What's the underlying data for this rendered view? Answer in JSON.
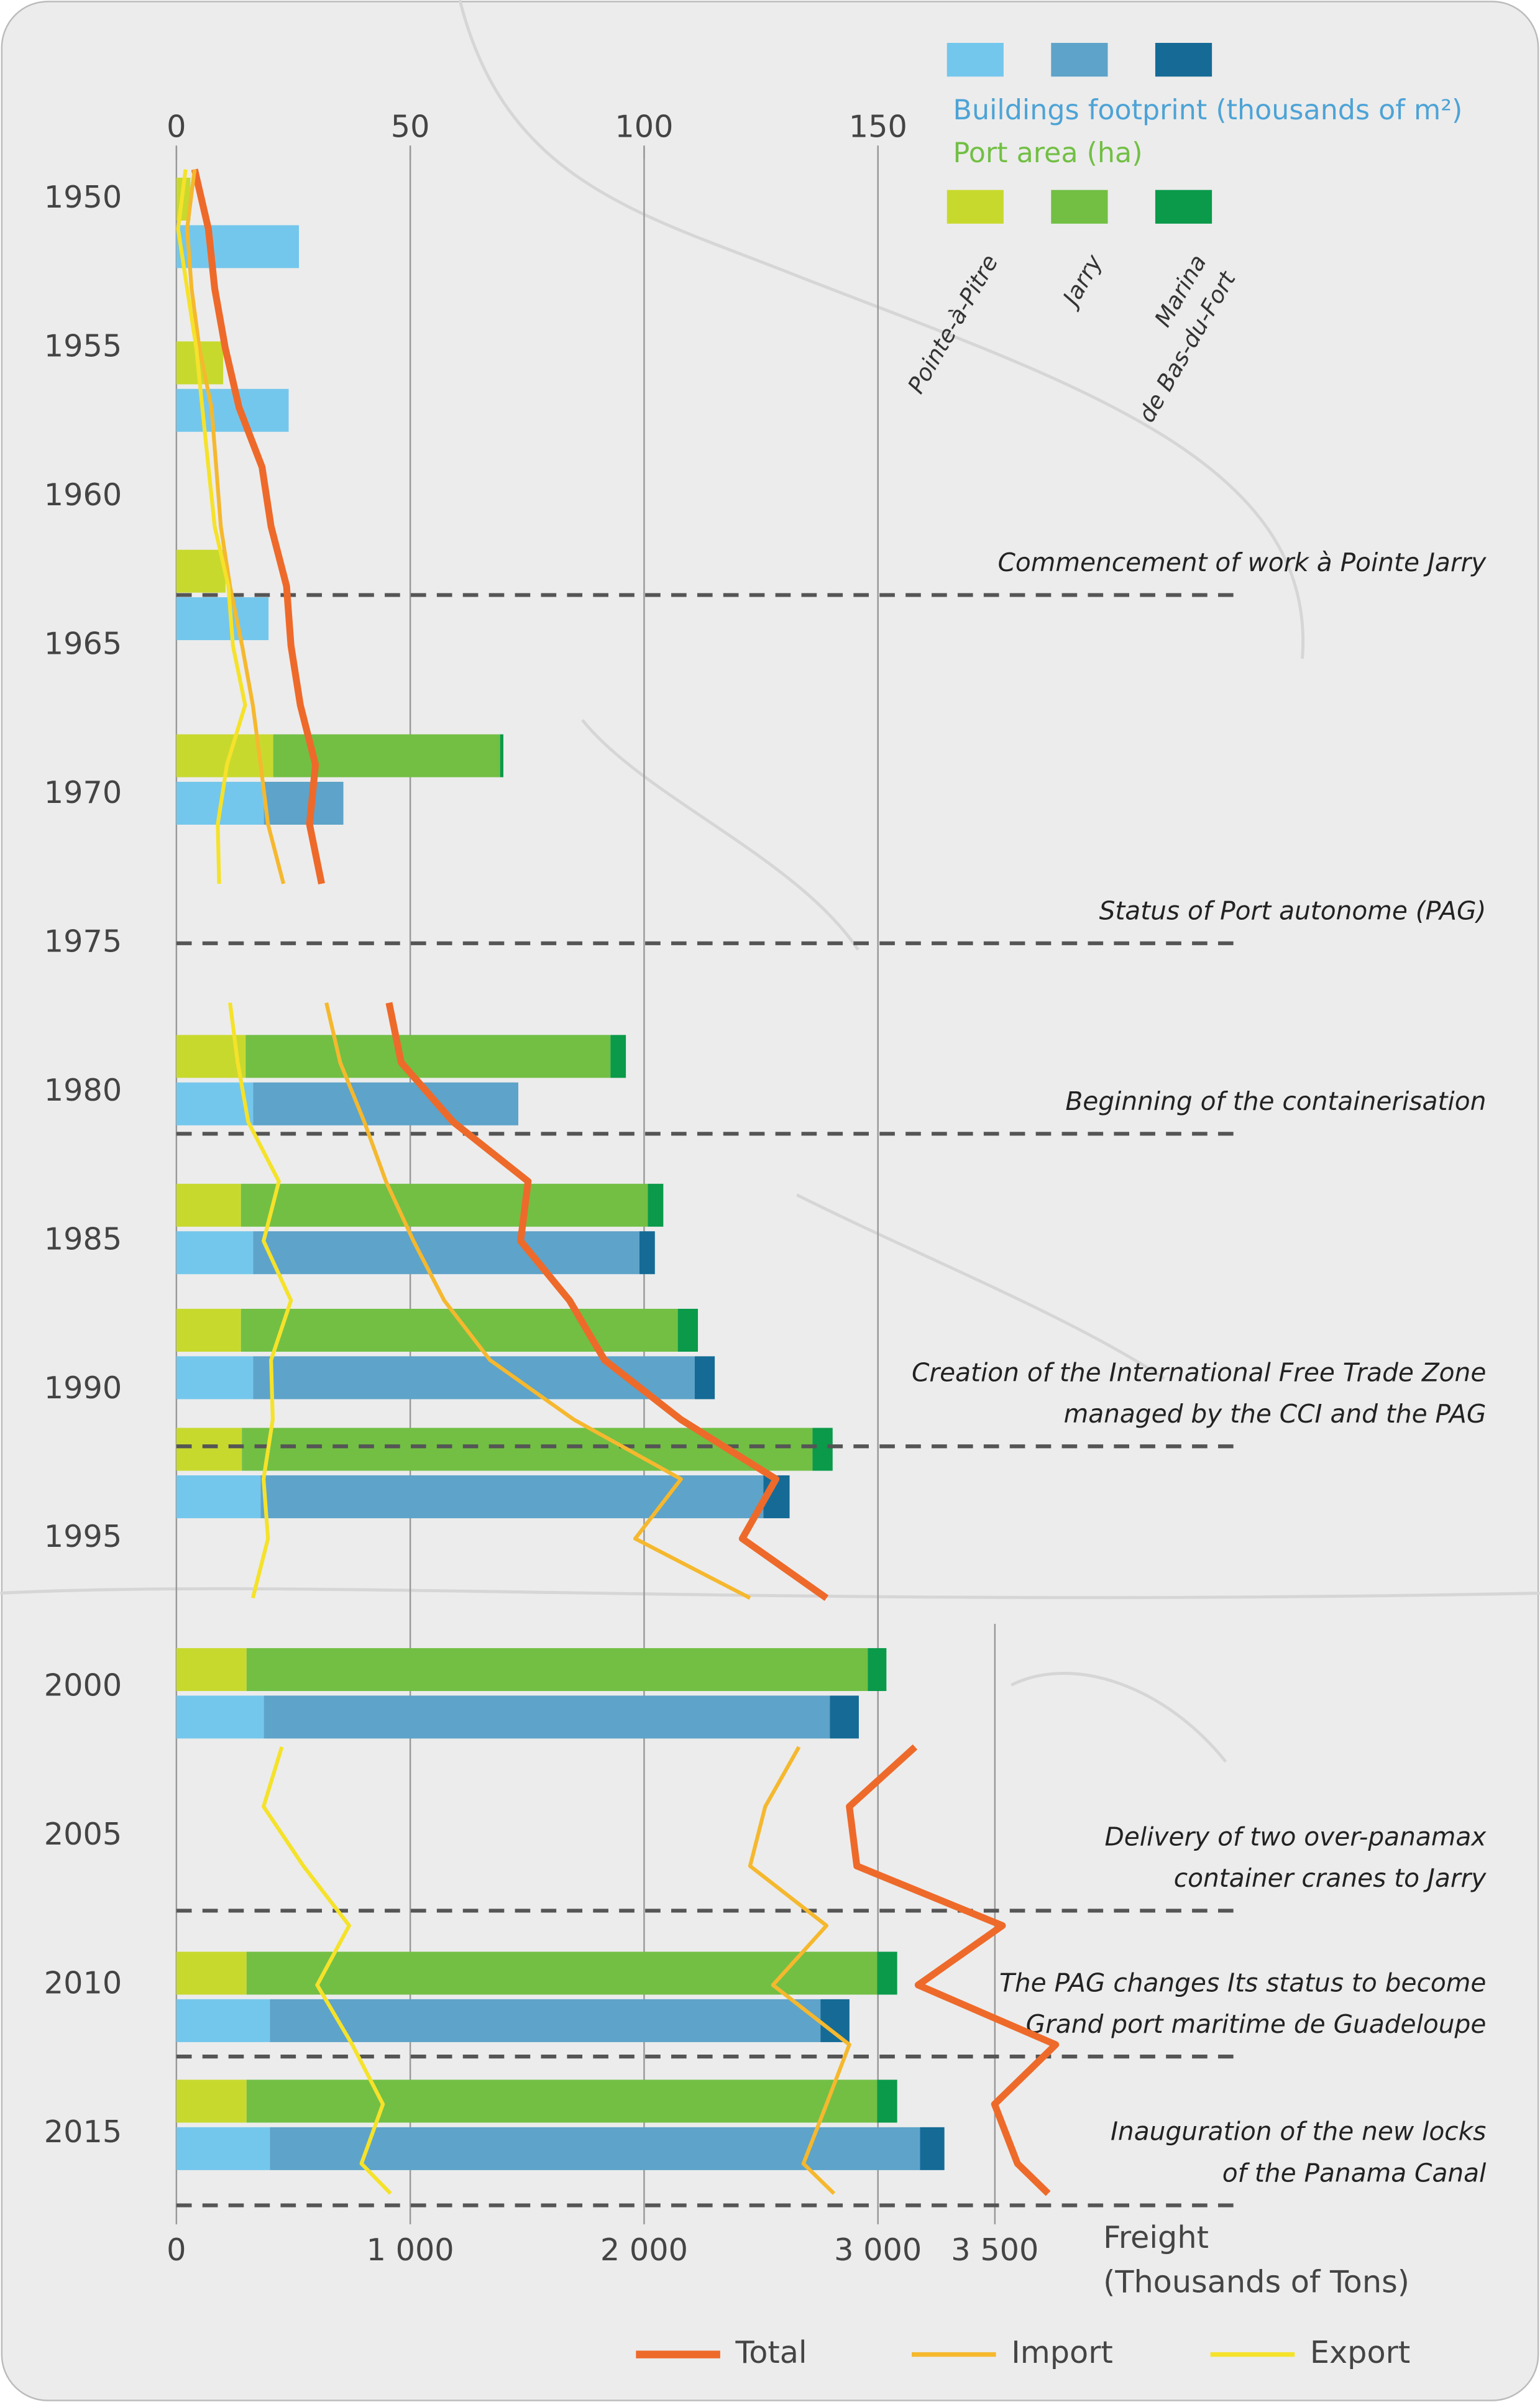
{
  "chart_data": [
    {
      "type": "bar",
      "components": [
        [
          "Pointe-à-Pitre"
        ],
        [
          "Jarry"
        ],
        [
          "Marina",
          "de Bas-du-Fort"
        ]
      ],
      "years": [
        1950,
        1955.5,
        1962.5,
        1968.7,
        1978.8,
        1983.8,
        1988.0,
        1992.0,
        1999.4,
        2009.6,
        2013.9
      ],
      "groups": [
        {
          "name": "Buildings footprint (thousands of m²)",
          "colors": [
            "#74c7ec",
            "#5ea3c9",
            "#156b96"
          ],
          "values": [
            [
              26.2,
              24,
              19.7,
              18.7,
              16.4,
              16.4,
              16.4,
              18,
              18.7,
              20,
              20
            ],
            [
              0,
              0,
              0,
              17,
              56.7,
              82.6,
              94.4,
              107.5,
              121,
              117.7,
              139
            ],
            [
              0,
              0,
              0,
              0,
              0,
              3.3,
              4.3,
              5.6,
              6.2,
              6.2,
              5.2
            ]
          ]
        },
        {
          "name": "Port area (ha)",
          "colors": [
            "#c8d92e",
            "#72bf44",
            "#0a9a4a"
          ],
          "values": [
            [
              3,
              10,
              10.5,
              20.7,
              14.8,
              13.8,
              13.8,
              14,
              15,
              15,
              15
            ],
            [
              0,
              0,
              0,
              48.5,
              78,
              87,
              93.4,
              122,
              132.8,
              134.8,
              134.8
            ],
            [
              0,
              0,
              0,
              0.7,
              3.3,
              3.3,
              4.3,
              4.3,
              4,
              4.3,
              4.3
            ]
          ]
        }
      ],
      "xlim": [
        0,
        150
      ],
      "xticks": [
        0,
        50,
        100,
        150
      ],
      "ylim": [
        1950,
        2015
      ],
      "yticks": [
        1950,
        1955,
        1960,
        1965,
        1970,
        1975,
        1980,
        1985,
        1990,
        1995,
        2000,
        2005,
        2010,
        2015
      ]
    },
    {
      "type": "line",
      "xlabel": [
        "Freight",
        "(Thousands of Tons)"
      ],
      "x": [
        1949,
        1951,
        1953,
        1955,
        1957,
        1959,
        1961,
        1963,
        1965,
        1967,
        1969,
        1971,
        1973,
        1975,
        1977,
        1979,
        1981,
        1983,
        1985,
        1987,
        1989,
        1991,
        1993,
        1995,
        1997,
        1999,
        2002,
        2004,
        2006,
        2008,
        2010,
        2012,
        2014,
        2016,
        2017
      ],
      "series": [
        {
          "name": "Total",
          "color": "#ee6a2a",
          "values": [
            78,
            137,
            164,
            209,
            268,
            366,
            405,
            471,
            490,
            530,
            595,
            569,
            621,
            null,
            909,
            961,
            1184,
            1504,
            1472,
            1681,
            1831,
            2158,
            2564,
            2420,
            2780,
            null,
            3159,
            2878,
            2910,
            3532,
            3172,
            3760,
            3499,
            3597,
            3728
          ]
        },
        {
          "name": "Import",
          "color": "#f5b82e",
          "values": [
            78,
            46,
            65,
            98,
            150,
            170,
            190,
            229,
            281,
            327,
            360,
            392,
            458,
            null,
            641,
            700,
            804,
            896,
            1014,
            1145,
            1341,
            1700,
            2158,
            1962,
            2453,
            null,
            2662,
            2518,
            2453,
            2780,
            2551,
            2878,
            2780,
            2681,
            2812
          ]
        },
        {
          "name": "Export",
          "color": "#f5e22a",
          "values": [
            39,
            7,
            46,
            85,
            111,
            137,
            164,
            222,
            242,
            294,
            216,
            177,
            183,
            null,
            229,
            262,
            307,
            438,
            373,
            490,
            405,
            412,
            373,
            392,
            327,
            null,
            451,
            373,
            543,
            739,
            602,
            752,
            883,
            791,
            916
          ]
        }
      ],
      "xlim": [
        0,
        3500
      ],
      "xticks": [
        0,
        {
          "value": 1000,
          "label": "1 000"
        },
        {
          "value": 2000,
          "label": "2 000"
        },
        {
          "value": 3000,
          "label": "3 000"
        },
        {
          "value": 3500,
          "label": "3 500"
        }
      ],
      "ylim": [
        1950,
        2015
      ],
      "annotations": [
        {
          "year": 1963.3,
          "text": [
            "Commencement of work à Pointe Jarry"
          ]
        },
        {
          "year": 1975.0,
          "text": [
            "Status of Port autonome (PAG)"
          ]
        },
        {
          "year": 1981.4,
          "text": [
            "Beginning of the containerisation"
          ]
        },
        {
          "year": 1991.9,
          "text": [
            "Creation of the International Free Trade Zone",
            "managed by the CCI and the PAG"
          ]
        },
        {
          "year": 2007.5,
          "text": [
            "Delivery of two over-panamax",
            "container cranes to Jarry"
          ]
        },
        {
          "year": 2012.4,
          "text": [
            "The PAG changes Its status to become",
            "Grand port maritime de Guadeloupe"
          ]
        },
        {
          "year": 2017.4,
          "text": [
            "Inauguration of the new locks",
            "of the Panama Canal"
          ]
        }
      ]
    }
  ]
}
